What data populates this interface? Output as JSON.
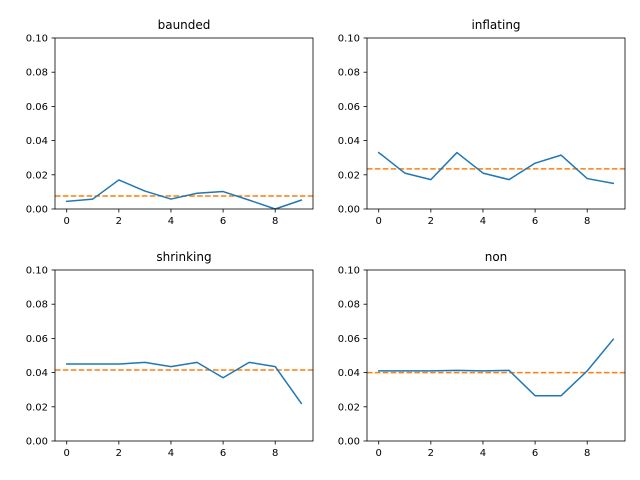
{
  "chart_data": [
    {
      "type": "line",
      "title": "baunded",
      "x": [
        0,
        1,
        2,
        3,
        4,
        5,
        6,
        7,
        8,
        9
      ],
      "series": [
        {
          "values": [
            0.0045,
            0.0058,
            0.017,
            0.0105,
            0.0058,
            0.0092,
            0.0102,
            0.0052,
            0.0,
            0.0052
          ],
          "color": "#1f77b4",
          "style": "solid"
        }
      ],
      "reference_line": {
        "value": 0.0076,
        "color": "#ff7f0e",
        "style": "dashed"
      },
      "xlim": [
        -0.45,
        9.45
      ],
      "ylim": [
        0,
        0.1
      ],
      "xticks": [
        0,
        2,
        4,
        6,
        8
      ],
      "yticks": [
        "0.00",
        "0.02",
        "0.04",
        "0.06",
        "0.08",
        "0.10"
      ],
      "grid": false
    },
    {
      "type": "line",
      "title": "inflating",
      "x": [
        0,
        1,
        2,
        3,
        4,
        5,
        6,
        7,
        8,
        9
      ],
      "series": [
        {
          "values": [
            0.033,
            0.021,
            0.0172,
            0.033,
            0.021,
            0.0172,
            0.0268,
            0.0315,
            0.0178,
            0.015
          ],
          "color": "#1f77b4",
          "style": "solid"
        }
      ],
      "reference_line": {
        "value": 0.0235,
        "color": "#ff7f0e",
        "style": "dashed"
      },
      "xlim": [
        -0.45,
        9.45
      ],
      "ylim": [
        0,
        0.1
      ],
      "xticks": [
        0,
        2,
        4,
        6,
        8
      ],
      "yticks": [
        "0.00",
        "0.02",
        "0.04",
        "0.06",
        "0.08",
        "0.10"
      ],
      "grid": false
    },
    {
      "type": "line",
      "title": "shrinking",
      "x": [
        0,
        1,
        2,
        3,
        4,
        5,
        6,
        7,
        8,
        9
      ],
      "series": [
        {
          "values": [
            0.045,
            0.045,
            0.045,
            0.046,
            0.0435,
            0.046,
            0.037,
            0.046,
            0.0435,
            0.022
          ],
          "color": "#1f77b4",
          "style": "solid"
        }
      ],
      "reference_line": {
        "value": 0.0415,
        "color": "#ff7f0e",
        "style": "dashed"
      },
      "xlim": [
        -0.45,
        9.45
      ],
      "ylim": [
        0,
        0.1
      ],
      "xticks": [
        0,
        2,
        4,
        6,
        8
      ],
      "yticks": [
        "0.00",
        "0.02",
        "0.04",
        "0.06",
        "0.08",
        "0.10"
      ],
      "grid": false
    },
    {
      "type": "line",
      "title": "non",
      "x": [
        0,
        1,
        2,
        3,
        4,
        5,
        6,
        7,
        8,
        9
      ],
      "series": [
        {
          "values": [
            0.041,
            0.041,
            0.041,
            0.0413,
            0.041,
            0.0413,
            0.0265,
            0.0265,
            0.041,
            0.0595
          ],
          "color": "#1f77b4",
          "style": "solid"
        }
      ],
      "reference_line": {
        "value": 0.04,
        "color": "#ff7f0e",
        "style": "dashed"
      },
      "xlim": [
        -0.45,
        9.45
      ],
      "ylim": [
        0,
        0.1
      ],
      "xticks": [
        0,
        2,
        4,
        6,
        8
      ],
      "yticks": [
        "0.00",
        "0.02",
        "0.04",
        "0.06",
        "0.08",
        "0.10"
      ],
      "grid": false
    }
  ]
}
